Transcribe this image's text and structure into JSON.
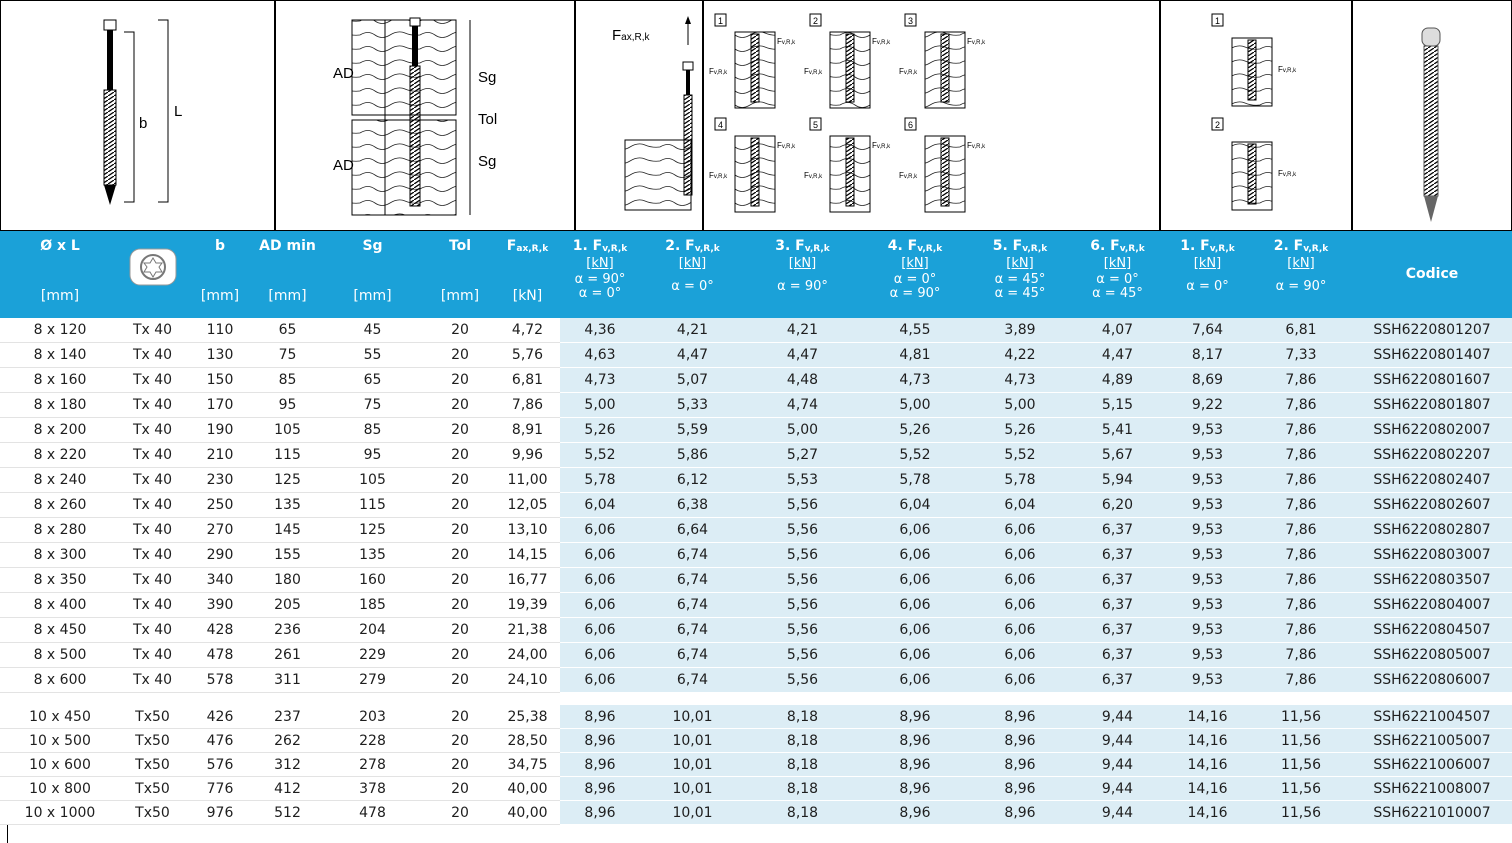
{
  "diagrams": {
    "d1": {
      "b": "b",
      "L": "L"
    },
    "d2": {
      "ad1": "AD",
      "sg1": "Sg",
      "tol": "Tol",
      "ad2": "AD",
      "sg2": "Sg"
    },
    "d3": {
      "f": "F",
      "sub": "ax,R,k"
    },
    "d4": {
      "numbers": [
        "1",
        "2",
        "3",
        "4",
        "5",
        "6"
      ],
      "f": "F",
      "sub": "v,R,k"
    },
    "d5": {
      "numbers": [
        "1",
        "2"
      ],
      "f": "F",
      "sub": "v,R,k"
    }
  },
  "header": {
    "columns": [
      {
        "label": "Ø x L",
        "unit": "[mm]"
      },
      {
        "label": "b",
        "unit": "[mm]"
      },
      {
        "label": "AD min",
        "unit": "[mm]"
      },
      {
        "label": "Sg",
        "unit": "[mm]"
      },
      {
        "label": "Tol",
        "unit": "[mm]"
      },
      {
        "label": "F",
        "sub": "ax,R,k",
        "unit": "[kN]"
      },
      {
        "label": "1. F",
        "sub": "v,R,k",
        "unit": "[kN]",
        "angles": [
          "α = 90°",
          "α = 0°"
        ]
      },
      {
        "label": "2. F",
        "sub": "v,R,k",
        "unit": "[kN]",
        "angles": [
          "α = 0°"
        ]
      },
      {
        "label": "3. F",
        "sub": "v,R,k",
        "unit": "[kN]",
        "angles": [
          "α = 90°"
        ]
      },
      {
        "label": "4. F",
        "sub": "v,R,k",
        "unit": "[kN]",
        "angles": [
          "α = 0°",
          "α = 90°"
        ]
      },
      {
        "label": "5. F",
        "sub": "v,R,k",
        "unit": "[kN]",
        "angles": [
          "α = 45°",
          "α = 45°"
        ]
      },
      {
        "label": "6. F",
        "sub": "v,R,k",
        "unit": "[kN]",
        "angles": [
          "α = 0°",
          "α = 45°"
        ]
      },
      {
        "label": "1. F",
        "sub": "v,R,k",
        "unit": "[kN]",
        "angles": [
          "α = 0°"
        ]
      },
      {
        "label": "2. F",
        "sub": "v,R,k",
        "unit": "[kN]",
        "angles": [
          "α = 90°"
        ]
      },
      {
        "label": "Codice"
      }
    ]
  },
  "groups": [
    {
      "rows": [
        [
          "8 x 120",
          "Tx 40",
          "110",
          "65",
          "45",
          "20",
          "4,72",
          "4,36",
          "4,21",
          "4,21",
          "4,55",
          "3,89",
          "4,07",
          "7,64",
          "6,81",
          "SSH6220801207"
        ],
        [
          "8 x 140",
          "Tx 40",
          "130",
          "75",
          "55",
          "20",
          "5,76",
          "4,63",
          "4,47",
          "4,47",
          "4,81",
          "4,22",
          "4,47",
          "8,17",
          "7,33",
          "SSH6220801407"
        ],
        [
          "8 x 160",
          "Tx 40",
          "150",
          "85",
          "65",
          "20",
          "6,81",
          "4,73",
          "5,07",
          "4,48",
          "4,73",
          "4,73",
          "4,89",
          "8,69",
          "7,86",
          "SSH6220801607"
        ],
        [
          "8 x 180",
          "Tx 40",
          "170",
          "95",
          "75",
          "20",
          "7,86",
          "5,00",
          "5,33",
          "4,74",
          "5,00",
          "5,00",
          "5,15",
          "9,22",
          "7,86",
          "SSH6220801807"
        ],
        [
          "8 x 200",
          "Tx 40",
          "190",
          "105",
          "85",
          "20",
          "8,91",
          "5,26",
          "5,59",
          "5,00",
          "5,26",
          "5,26",
          "5,41",
          "9,53",
          "7,86",
          "SSH6220802007"
        ],
        [
          "8 x 220",
          "Tx 40",
          "210",
          "115",
          "95",
          "20",
          "9,96",
          "5,52",
          "5,86",
          "5,27",
          "5,52",
          "5,52",
          "5,67",
          "9,53",
          "7,86",
          "SSH6220802207"
        ],
        [
          "8 x 240",
          "Tx 40",
          "230",
          "125",
          "105",
          "20",
          "11,00",
          "5,78",
          "6,12",
          "5,53",
          "5,78",
          "5,78",
          "5,94",
          "9,53",
          "7,86",
          "SSH6220802407"
        ],
        [
          "8 x 260",
          "Tx 40",
          "250",
          "135",
          "115",
          "20",
          "12,05",
          "6,04",
          "6,38",
          "5,56",
          "6,04",
          "6,04",
          "6,20",
          "9,53",
          "7,86",
          "SSH6220802607"
        ],
        [
          "8 x 280",
          "Tx 40",
          "270",
          "145",
          "125",
          "20",
          "13,10",
          "6,06",
          "6,64",
          "5,56",
          "6,06",
          "6,06",
          "6,37",
          "9,53",
          "7,86",
          "SSH6220802807"
        ],
        [
          "8 x 300",
          "Tx 40",
          "290",
          "155",
          "135",
          "20",
          "14,15",
          "6,06",
          "6,74",
          "5,56",
          "6,06",
          "6,06",
          "6,37",
          "9,53",
          "7,86",
          "SSH6220803007"
        ],
        [
          "8 x 350",
          "Tx 40",
          "340",
          "180",
          "160",
          "20",
          "16,77",
          "6,06",
          "6,74",
          "5,56",
          "6,06",
          "6,06",
          "6,37",
          "9,53",
          "7,86",
          "SSH6220803507"
        ],
        [
          "8 x 400",
          "Tx 40",
          "390",
          "205",
          "185",
          "20",
          "19,39",
          "6,06",
          "6,74",
          "5,56",
          "6,06",
          "6,06",
          "6,37",
          "9,53",
          "7,86",
          "SSH6220804007"
        ],
        [
          "8 x 450",
          "Tx 40",
          "428",
          "236",
          "204",
          "20",
          "21,38",
          "6,06",
          "6,74",
          "5,56",
          "6,06",
          "6,06",
          "6,37",
          "9,53",
          "7,86",
          "SSH6220804507"
        ],
        [
          "8 x 500",
          "Tx 40",
          "478",
          "261",
          "229",
          "20",
          "24,00",
          "6,06",
          "6,74",
          "5,56",
          "6,06",
          "6,06",
          "6,37",
          "9,53",
          "7,86",
          "SSH6220805007"
        ],
        [
          "8 x 600",
          "Tx 40",
          "578",
          "311",
          "279",
          "20",
          "24,10",
          "6,06",
          "6,74",
          "5,56",
          "6,06",
          "6,06",
          "6,37",
          "9,53",
          "7,86",
          "SSH6220806007"
        ]
      ]
    },
    {
      "rows": [
        [
          "10 x 450",
          "Tx50",
          "426",
          "237",
          "203",
          "20",
          "25,38",
          "8,96",
          "10,01",
          "8,18",
          "8,96",
          "8,96",
          "9,44",
          "14,16",
          "11,56",
          "SSH6221004507"
        ],
        [
          "10 x 500",
          "Tx50",
          "476",
          "262",
          "228",
          "20",
          "28,50",
          "8,96",
          "10,01",
          "8,18",
          "8,96",
          "8,96",
          "9,44",
          "14,16",
          "11,56",
          "SSH6221005007"
        ],
        [
          "10 x 600",
          "Tx50",
          "576",
          "312",
          "278",
          "20",
          "34,75",
          "8,96",
          "10,01",
          "8,18",
          "8,96",
          "8,96",
          "9,44",
          "14,16",
          "11,56",
          "SSH6221006007"
        ],
        [
          "10 x 800",
          "Tx50",
          "776",
          "412",
          "378",
          "20",
          "40,00",
          "8,96",
          "10,01",
          "8,18",
          "8,96",
          "8,96",
          "9,44",
          "14,16",
          "11,56",
          "SSH6221008007"
        ],
        [
          "10 x 1000",
          "Tx50",
          "976",
          "512",
          "478",
          "20",
          "40,00",
          "8,96",
          "10,01",
          "8,18",
          "8,96",
          "8,96",
          "9,44",
          "14,16",
          "11,56",
          "SSH6221010007"
        ]
      ]
    }
  ]
}
